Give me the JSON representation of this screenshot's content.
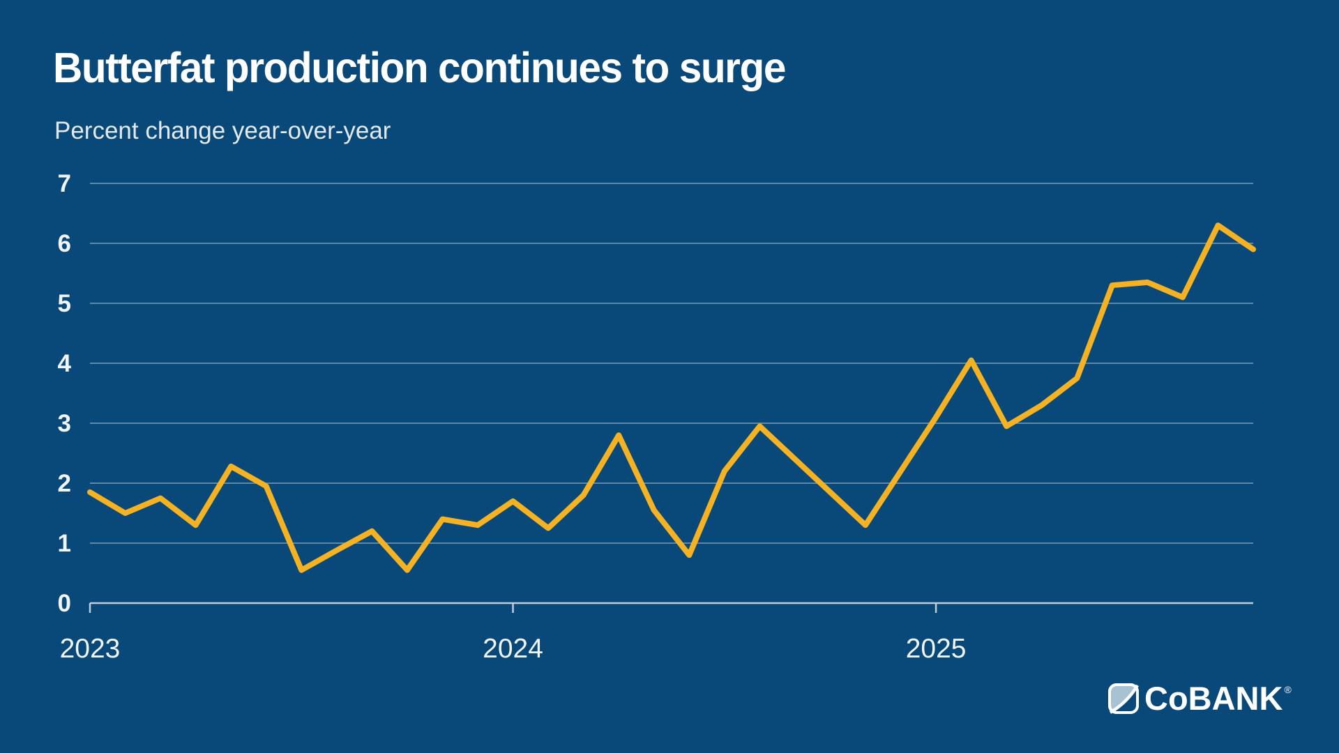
{
  "header": {
    "title": "Butterfat production continues to surge",
    "subtitle": "Percent change year-over-year"
  },
  "colors": {
    "background": "#09497A",
    "line": "#F6B221",
    "gridline": "rgba(255,255,255,0.35)",
    "axis": "#C2CEDA",
    "tick_label": "#F1F5F8",
    "logo_light": "#A9C2D3",
    "logo_white": "#FFFFFF"
  },
  "chart_data": {
    "type": "line",
    "title": "Butterfat production continues to surge",
    "subtitle": "Percent change year-over-year",
    "ylabel": "Percent change year-over-year",
    "xlabel": "",
    "ylim": [
      0,
      7
    ],
    "y_ticks": [
      0,
      1,
      2,
      3,
      4,
      5,
      6,
      7
    ],
    "grid": "horizontal",
    "legend": "none",
    "x": [
      "Jan 2023",
      "Feb 2023",
      "Mar 2023",
      "Apr 2023",
      "May 2023",
      "Jun 2023",
      "Jul 2023",
      "Aug 2023",
      "Sep 2023",
      "Oct 2023",
      "Nov 2023",
      "Dec 2023",
      "Jan 2024",
      "Feb 2024",
      "Mar 2024",
      "Apr 2024",
      "May 2024",
      "Jun 2024",
      "Jul 2024",
      "Aug 2024",
      "Sep 2024",
      "Oct 2024",
      "Nov 2024",
      "Dec 2024",
      "Jan 2025",
      "Feb 2025",
      "Mar 2025",
      "Apr 2025",
      "May 2025",
      "Jun 2025",
      "Jul 2025",
      "Aug 2025",
      "Sep 2025",
      "Oct 2025"
    ],
    "x_ticks": [
      {
        "index": 0,
        "label": "2023"
      },
      {
        "index": 12,
        "label": "2024"
      },
      {
        "index": 24,
        "label": "2025"
      }
    ],
    "series": [
      {
        "name": "Butterfat production, percent change year-over-year",
        "values": [
          1.85,
          1.5,
          1.75,
          1.3,
          2.28,
          1.95,
          0.55,
          0.88,
          1.2,
          0.55,
          1.4,
          1.3,
          1.7,
          1.25,
          1.8,
          2.8,
          1.55,
          0.8,
          2.2,
          2.95,
          2.4,
          1.85,
          1.3,
          2.2,
          3.1,
          4.05,
          2.95,
          3.3,
          3.75,
          5.3,
          5.35,
          5.1,
          6.3,
          5.9
        ]
      }
    ]
  },
  "logo": {
    "c": "C",
    "o": "o",
    "bank": "BANK",
    "reg": "®"
  }
}
